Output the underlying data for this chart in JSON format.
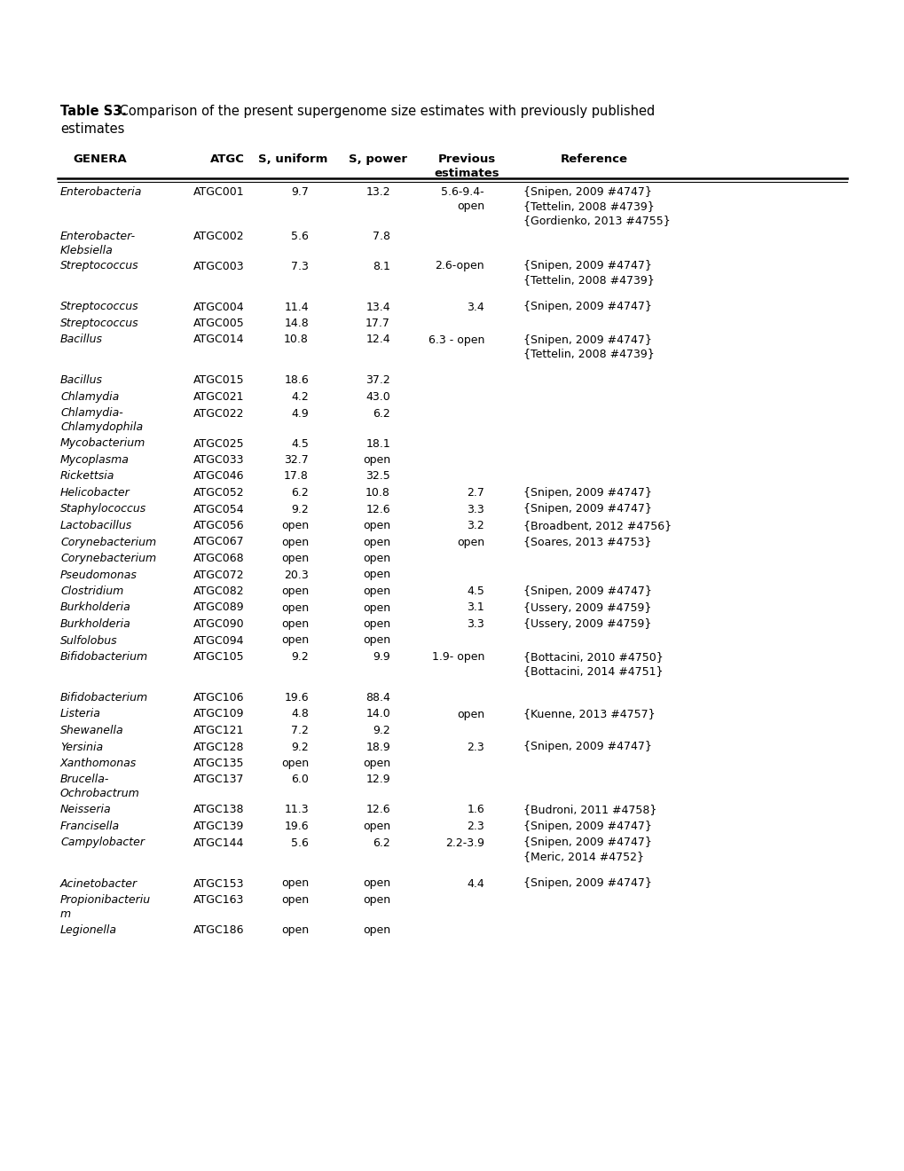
{
  "title_bold": "Table S3.",
  "title_normal": " Comparison of the present supergenome size estimates with previously published estimates",
  "columns": [
    "GENERA",
    "ATGC",
    "S, uniform",
    "S, power",
    "Previous\nestimates",
    "Reference"
  ],
  "rows": [
    {
      "genera": "Enterobacteria",
      "atgc": "ATGC001",
      "s_uniform": "9.7",
      "s_power": "13.2",
      "prev": "5.6-9.4-\nopen",
      "ref": "{Snipen, 2009 #4747}\n{Tettelin, 2008 #4739}\n{Gordienko, 2013 #4755}",
      "extra_space_after": false,
      "blank": false
    },
    {
      "genera": "Enterobacter-\nKlebsiella",
      "atgc": "ATGC002",
      "s_uniform": "5.6",
      "s_power": "7.8",
      "prev": "",
      "ref": "",
      "extra_space_after": false,
      "blank": false
    },
    {
      "genera": "Streptococcus",
      "atgc": "ATGC003",
      "s_uniform": "7.3",
      "s_power": "8.1",
      "prev": "2.6-open",
      "ref": "{Snipen, 2009 #4747}\n{Tettelin, 2008 #4739}",
      "extra_space_after": false,
      "blank": false
    },
    {
      "genera": "",
      "atgc": "",
      "s_uniform": "",
      "s_power": "",
      "prev": "",
      "ref": "",
      "extra_space_after": false,
      "blank": true
    },
    {
      "genera": "Streptococcus",
      "atgc": "ATGC004",
      "s_uniform": "11.4",
      "s_power": "13.4",
      "prev": "3.4",
      "ref": "{Snipen, 2009 #4747}",
      "extra_space_after": false,
      "blank": false
    },
    {
      "genera": "Streptococcus",
      "atgc": "ATGC005",
      "s_uniform": "14.8",
      "s_power": "17.7",
      "prev": "",
      "ref": "",
      "extra_space_after": false,
      "blank": false
    },
    {
      "genera": "Bacillus",
      "atgc": "ATGC014",
      "s_uniform": "10.8",
      "s_power": "12.4",
      "prev": "6.3 - open",
      "ref": "{Snipen, 2009 #4747}\n{Tettelin, 2008 #4739}",
      "extra_space_after": false,
      "blank": false
    },
    {
      "genera": "",
      "atgc": "",
      "s_uniform": "",
      "s_power": "",
      "prev": "",
      "ref": "",
      "extra_space_after": false,
      "blank": true
    },
    {
      "genera": "Bacillus",
      "atgc": "ATGC015",
      "s_uniform": "18.6",
      "s_power": "37.2",
      "prev": "",
      "ref": "",
      "extra_space_after": false,
      "blank": false
    },
    {
      "genera": "Chlamydia",
      "atgc": "ATGC021",
      "s_uniform": "4.2",
      "s_power": "43.0",
      "prev": "",
      "ref": "",
      "extra_space_after": false,
      "blank": false
    },
    {
      "genera": "Chlamydia-\nChlamydophila",
      "atgc": "ATGC022",
      "s_uniform": "4.9",
      "s_power": "6.2",
      "prev": "",
      "ref": "",
      "extra_space_after": false,
      "blank": false
    },
    {
      "genera": "Mycobacterium",
      "atgc": "ATGC025",
      "s_uniform": "4.5",
      "s_power": "18.1",
      "prev": "",
      "ref": "",
      "extra_space_after": false,
      "blank": false
    },
    {
      "genera": "Mycoplasma",
      "atgc": "ATGC033",
      "s_uniform": "32.7",
      "s_power": "open",
      "prev": "",
      "ref": "",
      "extra_space_after": false,
      "blank": false
    },
    {
      "genera": "Rickettsia",
      "atgc": "ATGC046",
      "s_uniform": "17.8",
      "s_power": "32.5",
      "prev": "",
      "ref": "",
      "extra_space_after": false,
      "blank": false
    },
    {
      "genera": "Helicobacter",
      "atgc": "ATGC052",
      "s_uniform": "6.2",
      "s_power": "10.8",
      "prev": "2.7",
      "ref": "{Snipen, 2009 #4747}",
      "extra_space_after": false,
      "blank": false
    },
    {
      "genera": "Staphylococcus",
      "atgc": "ATGC054",
      "s_uniform": "9.2",
      "s_power": "12.6",
      "prev": "3.3",
      "ref": "{Snipen, 2009 #4747}",
      "extra_space_after": false,
      "blank": false
    },
    {
      "genera": "Lactobacillus",
      "atgc": "ATGC056",
      "s_uniform": "open",
      "s_power": "open",
      "prev": "3.2",
      "ref": "{Broadbent, 2012 #4756}",
      "extra_space_after": false,
      "blank": false
    },
    {
      "genera": "Corynebacterium",
      "atgc": "ATGC067",
      "s_uniform": "open",
      "s_power": "open",
      "prev": "open",
      "ref": "{Soares, 2013 #4753}",
      "extra_space_after": false,
      "blank": false
    },
    {
      "genera": "Corynebacterium",
      "atgc": "ATGC068",
      "s_uniform": "open",
      "s_power": "open",
      "prev": "",
      "ref": "",
      "extra_space_after": false,
      "blank": false
    },
    {
      "genera": "Pseudomonas",
      "atgc": "ATGC072",
      "s_uniform": "20.3",
      "s_power": "open",
      "prev": "",
      "ref": "",
      "extra_space_after": false,
      "blank": false
    },
    {
      "genera": "Clostridium",
      "atgc": "ATGC082",
      "s_uniform": "open",
      "s_power": "open",
      "prev": "4.5",
      "ref": "{Snipen, 2009 #4747}",
      "extra_space_after": false,
      "blank": false
    },
    {
      "genera": "Burkholderia",
      "atgc": "ATGC089",
      "s_uniform": "open",
      "s_power": "open",
      "prev": "3.1",
      "ref": "{Ussery, 2009 #4759}",
      "extra_space_after": false,
      "blank": false
    },
    {
      "genera": "Burkholderia",
      "atgc": "ATGC090",
      "s_uniform": "open",
      "s_power": "open",
      "prev": "3.3",
      "ref": "{Ussery, 2009 #4759}",
      "extra_space_after": false,
      "blank": false
    },
    {
      "genera": "Sulfolobus",
      "atgc": "ATGC094",
      "s_uniform": "open",
      "s_power": "open",
      "prev": "",
      "ref": "",
      "extra_space_after": false,
      "blank": false
    },
    {
      "genera": "Bifidobacterium",
      "atgc": "ATGC105",
      "s_uniform": "9.2",
      "s_power": "9.9",
      "prev": "1.9- open",
      "ref": "{Bottacini, 2010 #4750}\n{Bottacini, 2014 #4751}",
      "extra_space_after": false,
      "blank": false
    },
    {
      "genera": "",
      "atgc": "",
      "s_uniform": "",
      "s_power": "",
      "prev": "",
      "ref": "",
      "extra_space_after": false,
      "blank": true
    },
    {
      "genera": "Bifidobacterium",
      "atgc": "ATGC106",
      "s_uniform": "19.6",
      "s_power": "88.4",
      "prev": "",
      "ref": "",
      "extra_space_after": false,
      "blank": false
    },
    {
      "genera": "Listeria",
      "atgc": "ATGC109",
      "s_uniform": "4.8",
      "s_power": "14.0",
      "prev": "open",
      "ref": "{Kuenne, 2013 #4757}",
      "extra_space_after": false,
      "blank": false
    },
    {
      "genera": "Shewanella",
      "atgc": "ATGC121",
      "s_uniform": "7.2",
      "s_power": "9.2",
      "prev": "",
      "ref": "",
      "extra_space_after": false,
      "blank": false
    },
    {
      "genera": "Yersinia",
      "atgc": "ATGC128",
      "s_uniform": "9.2",
      "s_power": "18.9",
      "prev": "2.3",
      "ref": "{Snipen, 2009 #4747}",
      "extra_space_after": false,
      "blank": false
    },
    {
      "genera": "Xanthomonas",
      "atgc": "ATGC135",
      "s_uniform": "open",
      "s_power": "open",
      "prev": "",
      "ref": "",
      "extra_space_after": false,
      "blank": false
    },
    {
      "genera": "Brucella-\nOchrobactrum",
      "atgc": "ATGC137",
      "s_uniform": "6.0",
      "s_power": "12.9",
      "prev": "",
      "ref": "",
      "extra_space_after": false,
      "blank": false
    },
    {
      "genera": "Neisseria",
      "atgc": "ATGC138",
      "s_uniform": "11.3",
      "s_power": "12.6",
      "prev": "1.6",
      "ref": "{Budroni, 2011 #4758}",
      "extra_space_after": false,
      "blank": false
    },
    {
      "genera": "Francisella",
      "atgc": "ATGC139",
      "s_uniform": "19.6",
      "s_power": "open",
      "prev": "2.3",
      "ref": "{Snipen, 2009 #4747}",
      "extra_space_after": false,
      "blank": false
    },
    {
      "genera": "Campylobacter",
      "atgc": "ATGC144",
      "s_uniform": "5.6",
      "s_power": "6.2",
      "prev": "2.2-3.9",
      "ref": "{Snipen, 2009 #4747}\n{Meric, 2014 #4752}",
      "extra_space_after": false,
      "blank": false
    },
    {
      "genera": "",
      "atgc": "",
      "s_uniform": "",
      "s_power": "",
      "prev": "",
      "ref": "",
      "extra_space_after": false,
      "blank": true
    },
    {
      "genera": "Acinetobacter",
      "atgc": "ATGC153",
      "s_uniform": "open",
      "s_power": "open",
      "prev": "4.4",
      "ref": "{Snipen, 2009 #4747}",
      "extra_space_after": false,
      "blank": false
    },
    {
      "genera": "Propionibacteriu\nm",
      "atgc": "ATGC163",
      "s_uniform": "open",
      "s_power": "open",
      "prev": "",
      "ref": "",
      "extra_space_after": false,
      "blank": false
    },
    {
      "genera": "Legionella",
      "atgc": "ATGC186",
      "s_uniform": "open",
      "s_power": "open",
      "prev": "",
      "ref": "",
      "extra_space_after": false,
      "blank": false
    }
  ],
  "bg_color": "#ffffff",
  "text_color": "#000000",
  "font_size": 9.0,
  "header_font_size": 9.5,
  "title_font_size": 10.5
}
